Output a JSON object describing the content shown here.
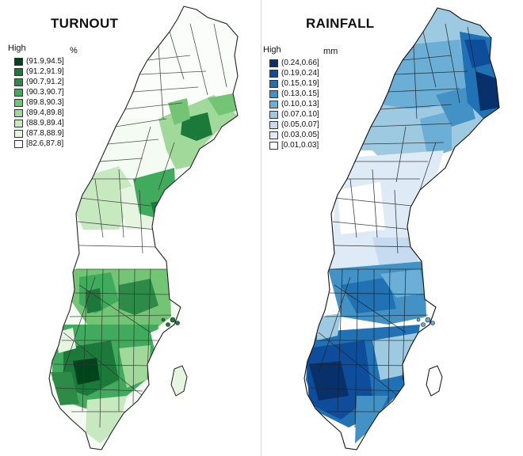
{
  "maps": [
    {
      "title": "TURNOUT",
      "legend_high": "High",
      "legend_unit": "%",
      "legend_items": [
        {
          "label": "(91.9,94.5]",
          "color": "#00441b"
        },
        {
          "label": "(91.2,91.9]",
          "color": "#1b7a3a"
        },
        {
          "label": "(90.7,91.2]",
          "color": "#2e8b47"
        },
        {
          "label": "(90.3,90.7]",
          "color": "#41ab5d"
        },
        {
          "label": "(89.8,90.3]",
          "color": "#74c476"
        },
        {
          "label": "(89.4,89.8]",
          "color": "#a1d99b"
        },
        {
          "label": "(88.9,89.4]",
          "color": "#c7e9c0"
        },
        {
          "label": "(87.8,88.9]",
          "color": "#e5f5e0"
        },
        {
          "label": "[82.6,87.8]",
          "color": "#ffffff"
        }
      ]
    },
    {
      "title": "RAINFALL",
      "legend_high": "High",
      "legend_unit": "mm",
      "legend_items": [
        {
          "label": "(0.24,0.66]",
          "color": "#08306b"
        },
        {
          "label": "(0.19,0.24]",
          "color": "#0d4d9c"
        },
        {
          "label": "(0.15,0.19]",
          "color": "#2171b5"
        },
        {
          "label": "(0.13,0.15]",
          "color": "#4292c6"
        },
        {
          "label": "(0.10,0.13]",
          "color": "#6baed6"
        },
        {
          "label": "(0.07,0.10]",
          "color": "#9ecae1"
        },
        {
          "label": "(0.05,0.07]",
          "color": "#c6dbef"
        },
        {
          "label": "(0.03,0.05]",
          "color": "#deebf7"
        },
        {
          "label": "[0.01,0.03]",
          "color": "#ffffff"
        }
      ]
    }
  ]
}
